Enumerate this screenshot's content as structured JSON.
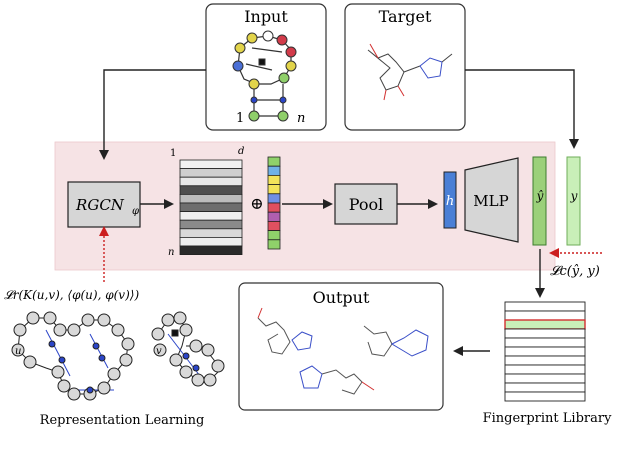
{
  "diagram": {
    "input": {
      "title": "Input",
      "start_label": "1",
      "end_label": "n"
    },
    "target": {
      "title": "Target"
    },
    "model": {
      "encoder_label": "RGCN",
      "encoder_subscript": "φ",
      "matrix_top_left": "1",
      "matrix_top_right": "d",
      "matrix_bottom_left": "n",
      "concat_symbol": "⊕",
      "pool_label": "Pool",
      "h_label": "h",
      "mlp_label": "MLP",
      "yhat_label": "ŷ",
      "y_label": "y"
    },
    "losses": {
      "classification": "𝓛c(ŷ, y)",
      "representation": "𝓛r(K(u,v), ⟨φ(u), φ(v)⟩)"
    },
    "output": {
      "title": "Output"
    },
    "library_label": "Fingerprint Library",
    "representation_label": "Representation Learning",
    "rep_node_u": "u",
    "rep_node_v": "v",
    "colors": {
      "panel_bg": "#f6e3e5",
      "matrix_shades": [
        "#f2f2f2",
        "#cfcfcf",
        "#e8e8e8",
        "#4f4f4f",
        "#bdbdbd",
        "#6e6e6e",
        "#f0f0f0",
        "#8a8a8a",
        "#d9d9d9",
        "#eeeeee",
        "#2a2a2a"
      ],
      "feature_colors": [
        "#8fd16a",
        "#6fb1e6",
        "#f2e35a",
        "#f2e35a",
        "#6f8fe6",
        "#e04f5f",
        "#b05fb0",
        "#e05060",
        "#8fd16a",
        "#8fd16a"
      ],
      "h_color": "#4a7fd6",
      "yhat_color": "#9bd07a",
      "y_color": "#c9efb8",
      "loss_arrow": "#cc1f1f",
      "library_highlight": "#c9efb8",
      "library_highlight_border": "#d23030"
    }
  }
}
